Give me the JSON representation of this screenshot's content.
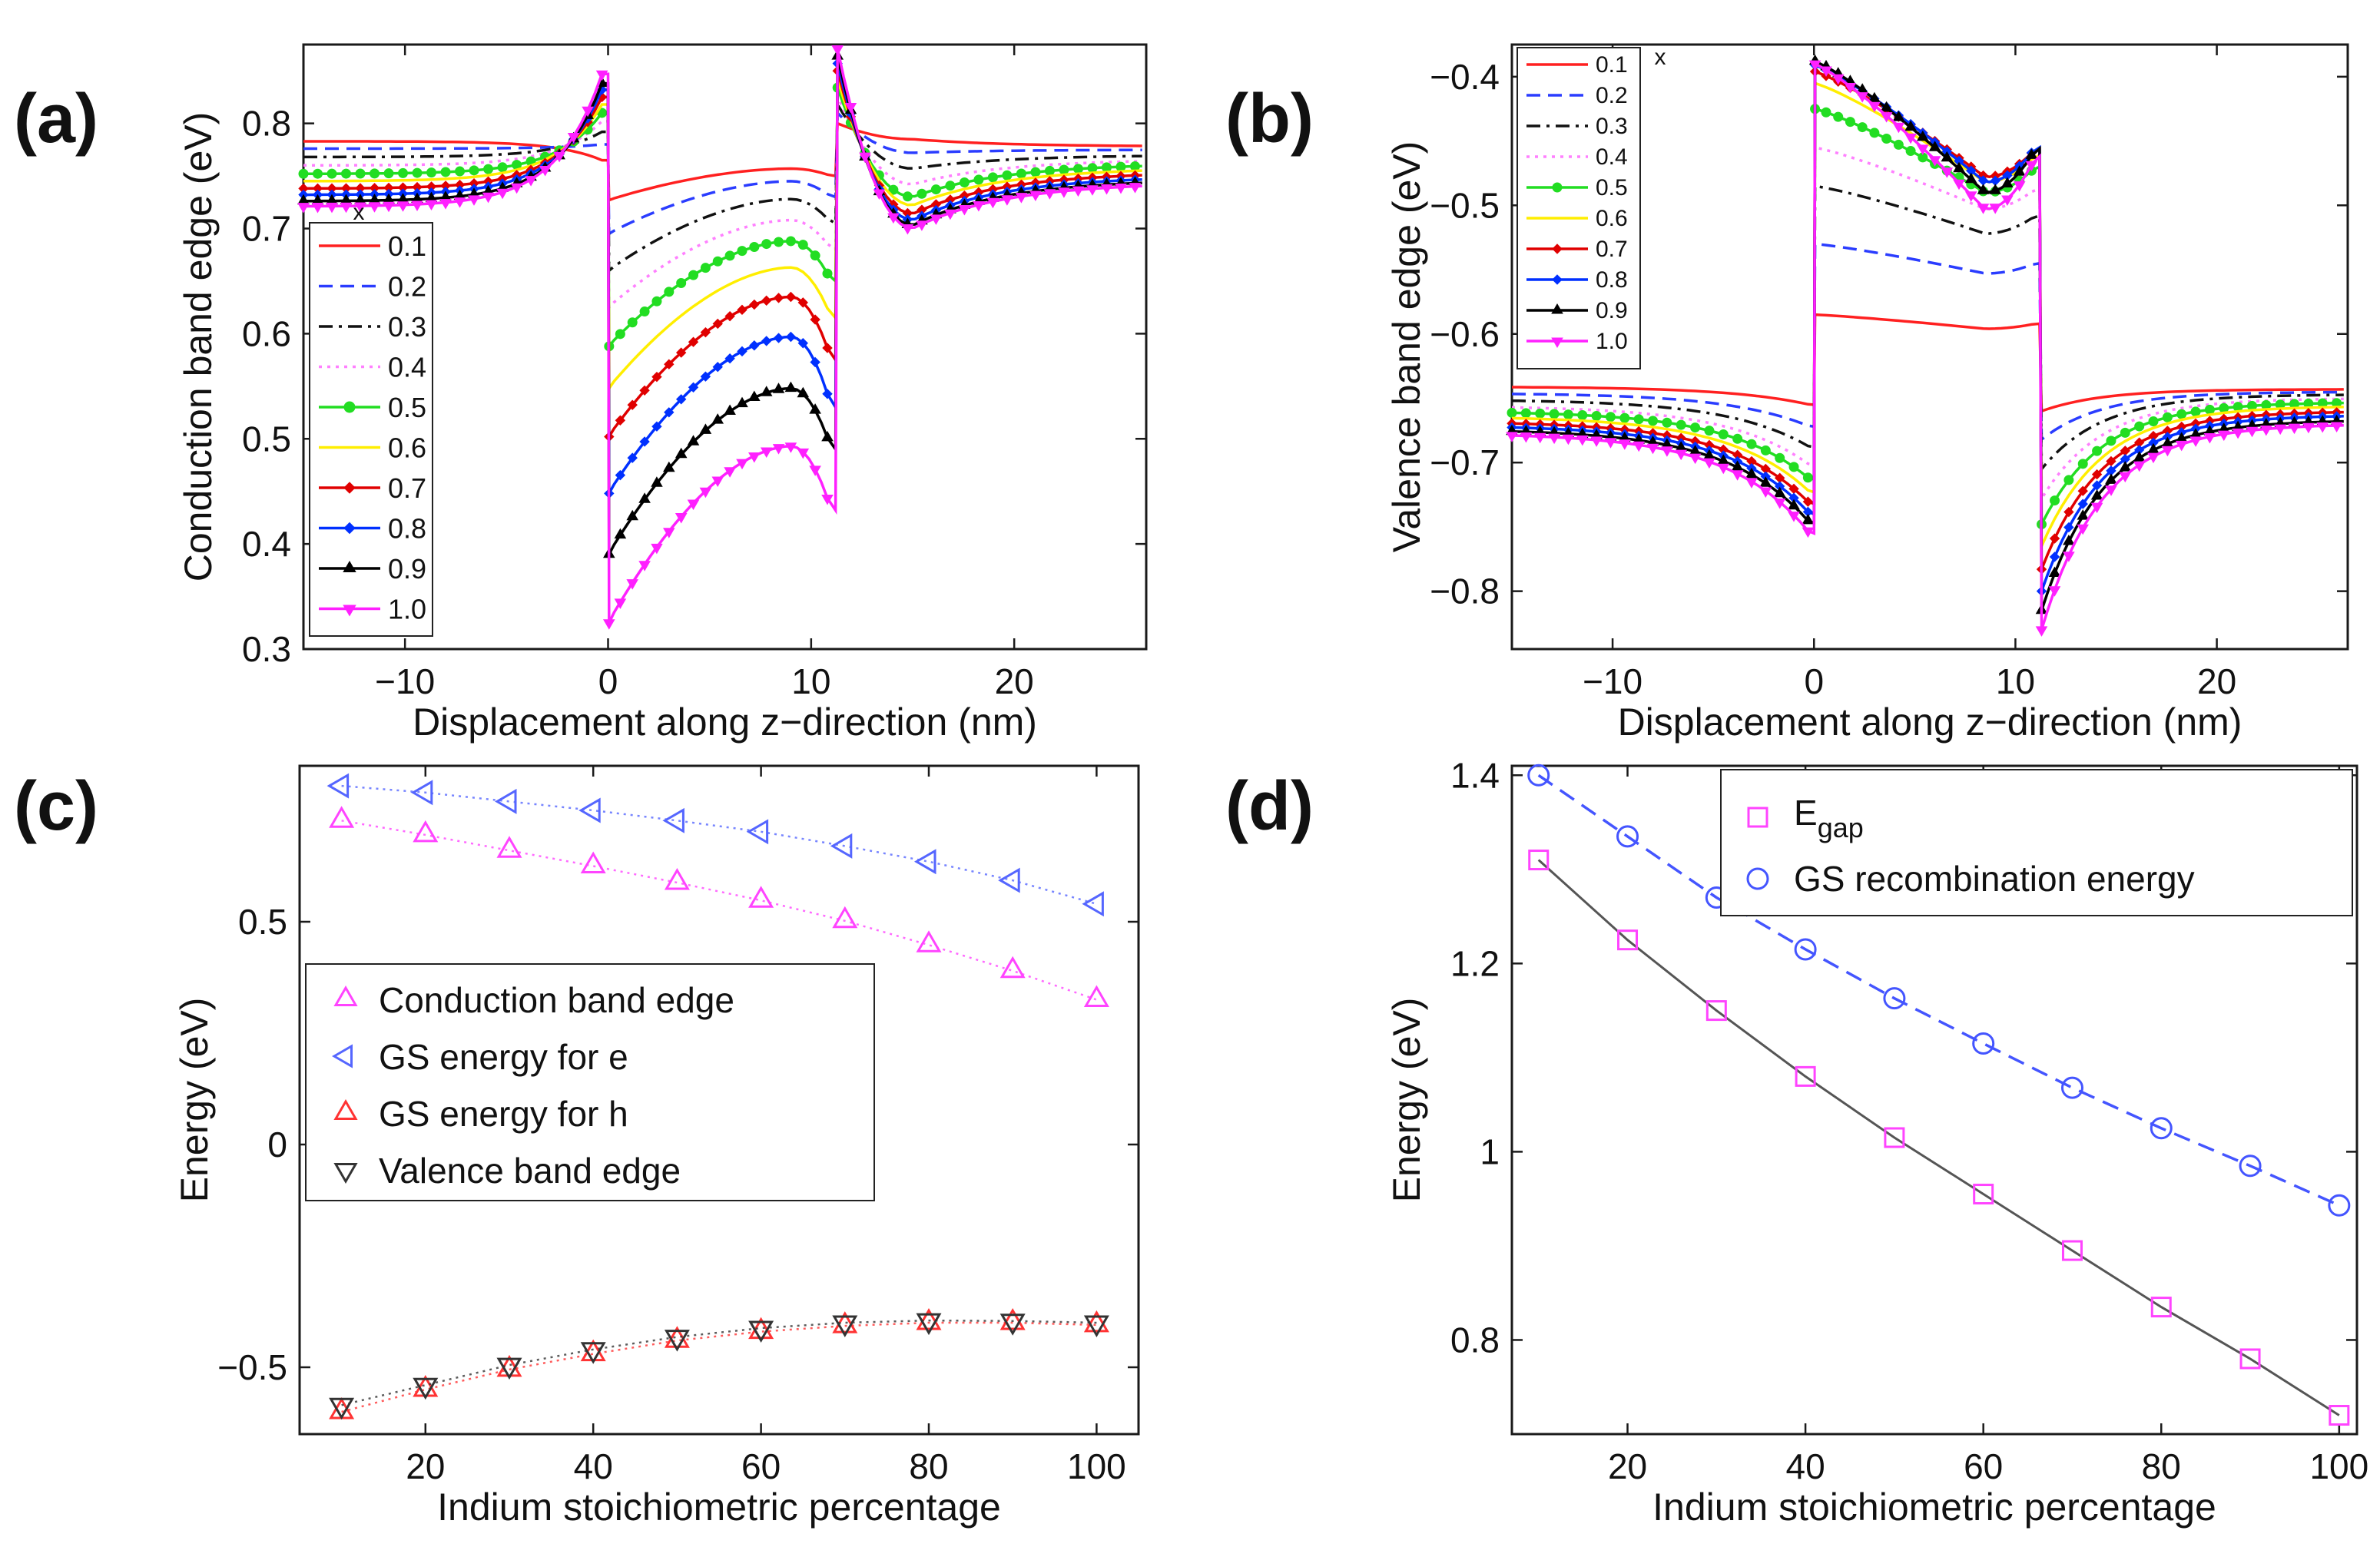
{
  "panels": {
    "a": {
      "label": "(a)"
    },
    "b": {
      "label": "(b)"
    },
    "c": {
      "label": "(c)"
    },
    "d": {
      "label": "(d)"
    }
  },
  "colors": {
    "0.1": "#ff2020",
    "0.2": "#2a3cff",
    "0.3": "#111111",
    "0.4": "#ff80ff",
    "0.5": "#22dd22",
    "0.6": "#ffee00",
    "0.7": "#e00000",
    "0.8": "#0030ff",
    "0.9": "#000000",
    "1.0": "#ff20ff",
    "cond": "#ff44ff",
    "gs_e": "#5566ff",
    "gs_h": "#ff3333",
    "val": "#333333",
    "egap": "#ff44ff",
    "gs_rec": "#4455ff",
    "fit": "#555555"
  },
  "chart_data": [
    {
      "id": "a",
      "type": "line",
      "title": "",
      "xlabel": "Displacement along z−direction (nm)",
      "ylabel": "Conduction band edge (eV)",
      "xlim": [
        -15,
        26.5
      ],
      "ylim": [
        0.3,
        0.875
      ],
      "xticks": [
        -10,
        0,
        10,
        20
      ],
      "xtick_labels": [
        "−10",
        "0",
        "10",
        "20"
      ],
      "yticks": [
        0.3,
        0.4,
        0.5,
        0.6,
        0.7,
        0.8
      ],
      "ytick_labels": [
        "0.3",
        "0.4",
        "0.5",
        "0.6",
        "0.7",
        "0.8"
      ],
      "legend_title": "x",
      "legend_position": "bottom-left",
      "series": [
        {
          "name": "0.1",
          "left": 0.783,
          "peak_l": 0.765,
          "w_start": 0.727,
          "w_peak": 0.757,
          "w_end": 0.75,
          "peak_r": 0.8,
          "dip": 0.785,
          "right": 0.778
        },
        {
          "name": "0.2",
          "left": 0.776,
          "peak_l": 0.78,
          "w_start": 0.695,
          "w_peak": 0.745,
          "w_end": 0.73,
          "peak_r": 0.81,
          "dip": 0.772,
          "right": 0.775
        },
        {
          "name": "0.3",
          "left": 0.768,
          "peak_l": 0.792,
          "w_start": 0.66,
          "w_peak": 0.728,
          "w_end": 0.705,
          "peak_r": 0.818,
          "dip": 0.757,
          "right": 0.77
        },
        {
          "name": "0.4",
          "left": 0.76,
          "peak_l": 0.802,
          "w_start": 0.625,
          "w_peak": 0.708,
          "w_end": 0.68,
          "peak_r": 0.826,
          "dip": 0.742,
          "right": 0.766
        },
        {
          "name": "0.5",
          "left": 0.752,
          "peak_l": 0.81,
          "w_start": 0.588,
          "w_peak": 0.688,
          "w_end": 0.65,
          "peak_r": 0.834,
          "dip": 0.73,
          "right": 0.762
        },
        {
          "name": "0.6",
          "left": 0.745,
          "peak_l": 0.818,
          "w_start": 0.548,
          "w_peak": 0.663,
          "w_end": 0.615,
          "peak_r": 0.842,
          "dip": 0.722,
          "right": 0.758
        },
        {
          "name": "0.7",
          "left": 0.738,
          "peak_l": 0.825,
          "w_start": 0.502,
          "w_peak": 0.635,
          "w_end": 0.575,
          "peak_r": 0.85,
          "dip": 0.714,
          "right": 0.754
        },
        {
          "name": "0.8",
          "left": 0.732,
          "peak_l": 0.832,
          "w_start": 0.448,
          "w_peak": 0.597,
          "w_end": 0.53,
          "peak_r": 0.857,
          "dip": 0.708,
          "right": 0.75
        },
        {
          "name": "0.9",
          "left": 0.726,
          "peak_l": 0.838,
          "w_start": 0.39,
          "w_peak": 0.548,
          "w_end": 0.49,
          "peak_r": 0.864,
          "dip": 0.703,
          "right": 0.747
        },
        {
          "name": "1.0",
          "left": 0.721,
          "peak_l": 0.847,
          "w_start": 0.325,
          "w_peak": 0.493,
          "w_end": 0.432,
          "peak_r": 0.871,
          "dip": 0.7,
          "right": 0.744
        }
      ]
    },
    {
      "id": "b",
      "type": "line",
      "title": "",
      "xlabel": "Displacement along z−direction (nm)",
      "ylabel": "Valence band edge (eV)",
      "xlim": [
        -15,
        26.5
      ],
      "ylim": [
        -0.845,
        -0.375
      ],
      "xticks": [
        -10,
        0,
        10,
        20
      ],
      "xtick_labels": [
        "−10",
        "0",
        "10",
        "20"
      ],
      "yticks": [
        -0.8,
        -0.7,
        -0.6,
        -0.5,
        -0.4
      ],
      "ytick_labels": [
        "−0.8",
        "−0.7",
        "−0.6",
        "−0.5",
        "−0.4"
      ],
      "legend_title": "x",
      "legend_position": "top-left",
      "series": [
        {
          "name": "0.1",
          "left": -0.641,
          "edge_l": -0.655,
          "w_start": -0.585,
          "w_low": -0.596,
          "w_end": -0.592,
          "edge_r": -0.66,
          "right": -0.643
        },
        {
          "name": "0.2",
          "left": -0.646,
          "edge_l": -0.672,
          "w_start": -0.53,
          "w_low": -0.553,
          "w_end": -0.545,
          "edge_r": -0.682,
          "right": -0.645
        },
        {
          "name": "0.3",
          "left": -0.651,
          "edge_l": -0.688,
          "w_start": -0.485,
          "w_low": -0.522,
          "w_end": -0.508,
          "edge_r": -0.705,
          "right": -0.647
        },
        {
          "name": "0.4",
          "left": -0.656,
          "edge_l": -0.702,
          "w_start": -0.455,
          "w_low": -0.503,
          "w_end": -0.487,
          "edge_r": -0.728,
          "right": -0.65
        },
        {
          "name": "0.5",
          "left": -0.66,
          "edge_l": -0.713,
          "w_start": -0.425,
          "w_low": -0.49,
          "w_end": -0.47,
          "edge_r": -0.748,
          "right": -0.653
        },
        {
          "name": "0.6",
          "left": -0.664,
          "edge_l": -0.723,
          "w_start": -0.405,
          "w_low": -0.482,
          "w_end": -0.461,
          "edge_r": -0.765,
          "right": -0.656
        },
        {
          "name": "0.7",
          "left": -0.668,
          "edge_l": -0.732,
          "w_start": -0.396,
          "w_low": -0.478,
          "w_end": -0.456,
          "edge_r": -0.783,
          "right": -0.66
        },
        {
          "name": "0.8",
          "left": -0.671,
          "edge_l": -0.74,
          "w_start": -0.391,
          "w_low": -0.482,
          "w_end": -0.455,
          "edge_r": -0.8,
          "right": -0.663
        },
        {
          "name": "0.9",
          "left": -0.674,
          "edge_l": -0.747,
          "w_start": -0.388,
          "w_low": -0.49,
          "w_end": -0.456,
          "edge_r": -0.815,
          "right": -0.667
        },
        {
          "name": "1.0",
          "left": -0.677,
          "edge_l": -0.755,
          "w_start": -0.39,
          "w_low": -0.503,
          "w_end": -0.462,
          "edge_r": -0.83,
          "right": -0.67
        }
      ]
    },
    {
      "id": "c",
      "type": "scatter",
      "title": "",
      "xlabel": "Indium stoichiometric percentage",
      "ylabel": "Energy (eV)",
      "xlim": [
        5,
        105
      ],
      "ylim": [
        -0.65,
        0.85
      ],
      "xticks": [
        20,
        40,
        60,
        80,
        100
      ],
      "xtick_labels": [
        "20",
        "40",
        "60",
        "80",
        "100"
      ],
      "yticks": [
        -0.5,
        0,
        0.5
      ],
      "ytick_labels": [
        "−0.5",
        "0",
        "0.5"
      ],
      "legend_position": "middle-left",
      "x": [
        10,
        20,
        30,
        40,
        50,
        60,
        70,
        80,
        90,
        100
      ],
      "series": [
        {
          "name": "Conduction band edge",
          "marker": "triangle-up",
          "values": [
            0.727,
            0.695,
            0.66,
            0.625,
            0.588,
            0.548,
            0.502,
            0.448,
            0.39,
            0.325
          ]
        },
        {
          "name": "GS energy for e",
          "marker": "triangle-left",
          "values": [
            0.805,
            0.79,
            0.77,
            0.75,
            0.727,
            0.702,
            0.67,
            0.635,
            0.593,
            0.54
          ]
        },
        {
          "name": "GS energy for h",
          "marker": "triangle-right",
          "values": [
            -0.6,
            -0.55,
            -0.505,
            -0.47,
            -0.44,
            -0.42,
            -0.407,
            -0.4,
            -0.4,
            -0.405
          ]
        },
        {
          "name": "Valence band edge",
          "marker": "triangle-down",
          "values": [
            -0.585,
            -0.54,
            -0.495,
            -0.46,
            -0.432,
            -0.412,
            -0.4,
            -0.395,
            -0.396,
            -0.4
          ]
        }
      ]
    },
    {
      "id": "d",
      "type": "scatter",
      "title": "",
      "xlabel": "Indium stoichiometric percentage",
      "ylabel": "Energy (eV)",
      "xlim": [
        7,
        102
      ],
      "ylim": [
        0.7,
        1.41
      ],
      "xticks": [
        20,
        40,
        60,
        80,
        100
      ],
      "xtick_labels": [
        "20",
        "40",
        "60",
        "80",
        "100"
      ],
      "yticks": [
        0.8,
        1.0,
        1.2,
        1.4
      ],
      "ytick_labels": [
        "0.8",
        "1",
        "1.2",
        "1.4"
      ],
      "legend_position": "top-right",
      "x": [
        10,
        20,
        30,
        40,
        50,
        60,
        70,
        80,
        90,
        100
      ],
      "series": [
        {
          "name": "E",
          "name_sub": "gap",
          "marker": "square",
          "values": [
            1.31,
            1.225,
            1.15,
            1.08,
            1.015,
            0.955,
            0.895,
            0.835,
            0.78,
            0.72
          ]
        },
        {
          "name": "GS recombination energy",
          "marker": "circle",
          "values": [
            1.4,
            1.335,
            1.27,
            1.215,
            1.163,
            1.115,
            1.068,
            1.025,
            0.985,
            0.943
          ]
        }
      ]
    }
  ]
}
